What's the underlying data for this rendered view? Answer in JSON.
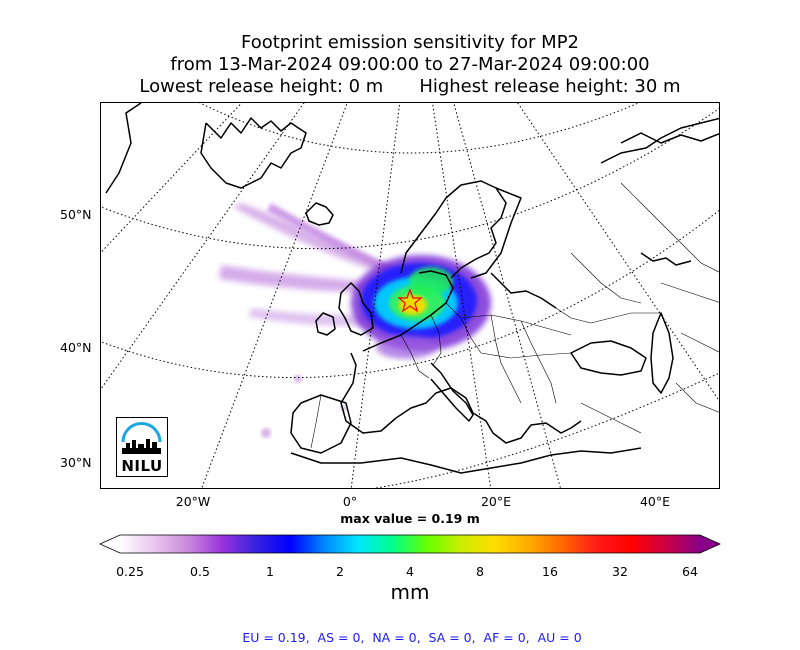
{
  "title": {
    "line1": "Footprint emission sensitivity for MP2",
    "line2": "from 13-Mar-2024 09:00:00 to 27-Mar-2024 09:00:00",
    "line3_left": "Lowest release height: 0 m",
    "line3_right": "Highest release height: 30 m"
  },
  "logo": {
    "text": "NILU"
  },
  "axes": {
    "lat_labels": [
      "50°N",
      "40°N",
      "30°N"
    ],
    "lon_labels": [
      "20°W",
      "0°",
      "20°E",
      "40°E"
    ]
  },
  "max_value_label": "max value = 0.19 m",
  "colorbar": {
    "unit": "mm",
    "ticks": [
      "0.25",
      "0.5",
      "1",
      "2",
      "4",
      "8",
      "16",
      "32",
      "64"
    ]
  },
  "region_summary": "EU = 0.19,  AS = 0,  NA = 0,  SA = 0,  AF = 0,  AU = 0",
  "chart_data": {
    "type": "heatmap",
    "title": "Footprint emission sensitivity for MP2",
    "period_start": "13-Mar-2024 09:00:00",
    "period_end": "27-Mar-2024 09:00:00",
    "lowest_release_height_m": 0,
    "highest_release_height_m": 30,
    "unit": "mm",
    "max_value": "0.19 m",
    "colorbar_levels": [
      0.25,
      0.5,
      1,
      2,
      4,
      8,
      16,
      32,
      64
    ],
    "colorbar_colors": [
      "#ffffff",
      "#e9c6ee",
      "#cc88dd",
      "#9933dd",
      "#3322dd",
      "#0000ff",
      "#0088ff",
      "#00e8ff",
      "#00ff88",
      "#66ff00",
      "#ccee00",
      "#ffdd00",
      "#ffaa00",
      "#ff6600",
      "#ff1a1a",
      "#ff0000",
      "#cc0044",
      "#880088"
    ],
    "colorbar_extend": "both",
    "release_site_lon": 8.5,
    "release_site_lat": 47.3,
    "lat_grid": [
      30,
      40,
      50
    ],
    "lon_grid": [
      -20,
      0,
      20,
      40
    ],
    "projection": "polar stereographic",
    "gridlines": "dotted",
    "region_values": {
      "EU": 0.19,
      "AS": 0,
      "NA": 0,
      "SA": 0,
      "AF": 0,
      "AU": 0
    }
  }
}
